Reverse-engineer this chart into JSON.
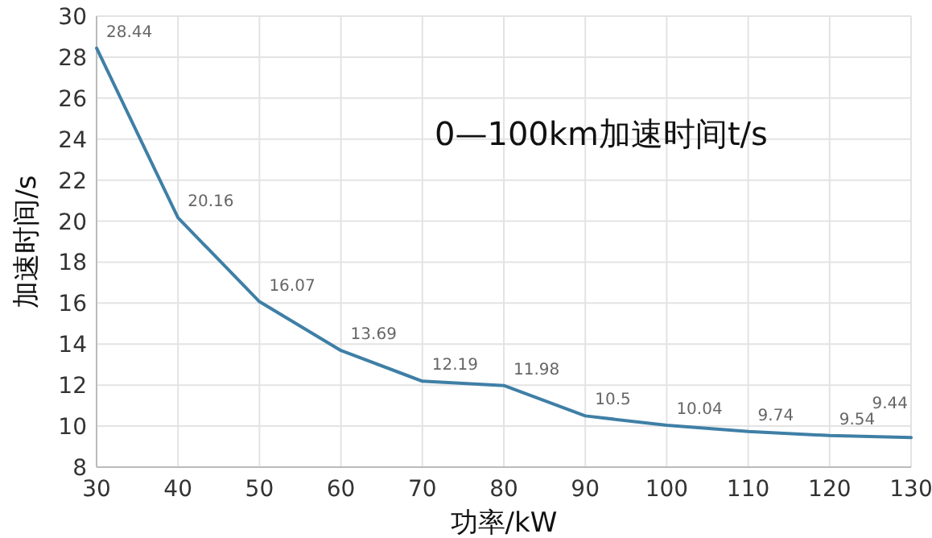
{
  "chart_data": {
    "type": "line",
    "title": "0—100km加速时间t/s",
    "xlabel": "功率/kW",
    "ylabel": "加速时间/s",
    "x": [
      30,
      40,
      50,
      60,
      70,
      80,
      90,
      100,
      110,
      120,
      130
    ],
    "series": [
      {
        "color": "#3f7fa6",
        "values": [
          28.44,
          20.16,
          16.07,
          13.69,
          12.19,
          11.98,
          10.5,
          10.04,
          9.74,
          9.54,
          9.44
        ]
      }
    ],
    "xlim": [
      30,
      130
    ],
    "xticks": [
      30,
      40,
      50,
      60,
      70,
      80,
      90,
      100,
      110,
      120,
      130
    ],
    "ylim": [
      8,
      30
    ],
    "yticks": [
      8,
      10,
      12,
      14,
      16,
      18,
      20,
      22,
      24,
      26,
      28,
      30
    ],
    "grid": true,
    "data_labels": true,
    "marker": "none",
    "line_style": "solid"
  }
}
